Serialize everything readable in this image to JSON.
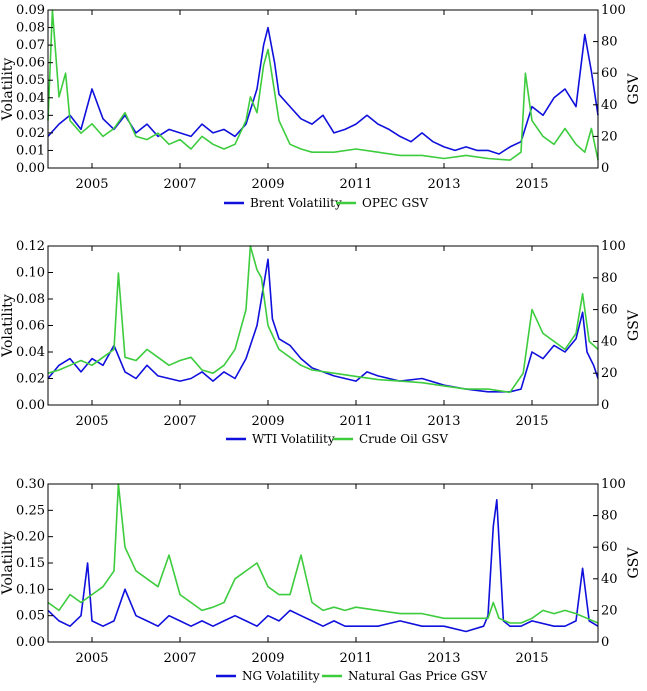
{
  "colors": {
    "volatility": "#1010dd",
    "gsv": "#3dcc3d"
  },
  "chart_data": [
    {
      "type": "line",
      "ylabel": "Volatility",
      "y2label": "GSV",
      "xlim": [
        2004.0,
        2016.5
      ],
      "ylim": [
        0,
        0.09
      ],
      "y2lim": [
        0,
        100
      ],
      "xticks": [
        "2005",
        "2007",
        "2009",
        "2011",
        "2013",
        "2015"
      ],
      "yticks": [
        "0.00",
        "0.01",
        "0.02",
        "0.03",
        "0.04",
        "0.05",
        "0.06",
        "0.07",
        "0.08",
        "0.09"
      ],
      "y2ticks": [
        "0",
        "20",
        "40",
        "60",
        "80",
        "100"
      ],
      "legend": "bottom-center",
      "series": [
        {
          "name": "Brent Volatility",
          "axis": "left",
          "x": [
            2004.0,
            2004.25,
            2004.5,
            2004.75,
            2005.0,
            2005.25,
            2005.5,
            2005.75,
            2006.0,
            2006.25,
            2006.5,
            2006.75,
            2007.0,
            2007.25,
            2007.5,
            2007.75,
            2008.0,
            2008.25,
            2008.5,
            2008.75,
            2008.9,
            2009.0,
            2009.15,
            2009.25,
            2009.5,
            2009.75,
            2010.0,
            2010.25,
            2010.5,
            2010.75,
            2011.0,
            2011.25,
            2011.5,
            2011.75,
            2012.0,
            2012.25,
            2012.5,
            2012.75,
            2013.0,
            2013.25,
            2013.5,
            2013.75,
            2014.0,
            2014.25,
            2014.5,
            2014.75,
            2015.0,
            2015.25,
            2015.5,
            2015.75,
            2016.0,
            2016.2,
            2016.35,
            2016.5
          ],
          "y": [
            0.018,
            0.025,
            0.03,
            0.022,
            0.045,
            0.028,
            0.022,
            0.03,
            0.02,
            0.025,
            0.018,
            0.022,
            0.02,
            0.018,
            0.025,
            0.02,
            0.022,
            0.018,
            0.025,
            0.045,
            0.07,
            0.08,
            0.06,
            0.042,
            0.035,
            0.028,
            0.025,
            0.03,
            0.02,
            0.022,
            0.025,
            0.03,
            0.025,
            0.022,
            0.018,
            0.015,
            0.02,
            0.015,
            0.012,
            0.01,
            0.012,
            0.01,
            0.01,
            0.008,
            0.012,
            0.015,
            0.035,
            0.03,
            0.04,
            0.045,
            0.035,
            0.076,
            0.055,
            0.03
          ]
        },
        {
          "name": "OPEC GSV",
          "axis": "right",
          "x": [
            2004.0,
            2004.1,
            2004.25,
            2004.4,
            2004.5,
            2004.75,
            2005.0,
            2005.25,
            2005.5,
            2005.75,
            2006.0,
            2006.25,
            2006.5,
            2006.75,
            2007.0,
            2007.25,
            2007.5,
            2007.75,
            2008.0,
            2008.25,
            2008.5,
            2008.6,
            2008.75,
            2008.9,
            2009.0,
            2009.25,
            2009.5,
            2009.75,
            2010.0,
            2010.5,
            2011.0,
            2011.5,
            2012.0,
            2012.5,
            2013.0,
            2013.5,
            2014.0,
            2014.5,
            2014.75,
            2014.85,
            2015.0,
            2015.25,
            2015.5,
            2015.75,
            2016.0,
            2016.2,
            2016.35,
            2016.5
          ],
          "y": [
            30,
            100,
            45,
            60,
            30,
            22,
            28,
            20,
            25,
            35,
            20,
            18,
            22,
            15,
            18,
            12,
            20,
            15,
            12,
            15,
            30,
            45,
            35,
            65,
            75,
            30,
            15,
            12,
            10,
            10,
            12,
            10,
            8,
            8,
            6,
            8,
            6,
            5,
            10,
            60,
            30,
            20,
            15,
            25,
            15,
            10,
            25,
            5
          ]
        }
      ]
    },
    {
      "type": "line",
      "ylabel": "Volatility",
      "y2label": "GSV",
      "xlim": [
        2004.0,
        2016.5
      ],
      "ylim": [
        0,
        0.12
      ],
      "y2lim": [
        0,
        100
      ],
      "xticks": [
        "2005",
        "2007",
        "2009",
        "2011",
        "2013",
        "2015"
      ],
      "yticks": [
        "0.00",
        "0.02",
        "0.04",
        "0.06",
        "0.08",
        "0.10",
        "0.12"
      ],
      "y2ticks": [
        "0",
        "20",
        "40",
        "60",
        "80",
        "100"
      ],
      "legend": "bottom-center",
      "series": [
        {
          "name": "WTI Volatility",
          "axis": "left",
          "x": [
            2004.0,
            2004.25,
            2004.5,
            2004.75,
            2005.0,
            2005.25,
            2005.5,
            2005.75,
            2006.0,
            2006.25,
            2006.5,
            2006.75,
            2007.0,
            2007.25,
            2007.5,
            2007.75,
            2008.0,
            2008.25,
            2008.5,
            2008.75,
            2008.85,
            2009.0,
            2009.1,
            2009.25,
            2009.5,
            2009.75,
            2010.0,
            2010.25,
            2010.5,
            2010.75,
            2011.0,
            2011.25,
            2011.5,
            2011.75,
            2012.0,
            2012.5,
            2013.0,
            2013.5,
            2014.0,
            2014.5,
            2014.75,
            2015.0,
            2015.25,
            2015.5,
            2015.75,
            2016.0,
            2016.15,
            2016.25,
            2016.4,
            2016.5
          ],
          "y": [
            0.02,
            0.03,
            0.035,
            0.025,
            0.035,
            0.03,
            0.045,
            0.025,
            0.02,
            0.03,
            0.022,
            0.02,
            0.018,
            0.02,
            0.025,
            0.018,
            0.025,
            0.02,
            0.035,
            0.06,
            0.08,
            0.11,
            0.065,
            0.05,
            0.045,
            0.035,
            0.028,
            0.025,
            0.022,
            0.02,
            0.018,
            0.025,
            0.022,
            0.02,
            0.018,
            0.02,
            0.015,
            0.012,
            0.01,
            0.01,
            0.012,
            0.04,
            0.035,
            0.045,
            0.04,
            0.05,
            0.07,
            0.04,
            0.03,
            0.02
          ]
        },
        {
          "name": "Crude Oil GSV",
          "axis": "right",
          "x": [
            2004.0,
            2004.25,
            2004.5,
            2004.75,
            2005.0,
            2005.25,
            2005.5,
            2005.6,
            2005.75,
            2006.0,
            2006.25,
            2006.5,
            2006.75,
            2007.0,
            2007.25,
            2007.5,
            2007.75,
            2008.0,
            2008.25,
            2008.5,
            2008.6,
            2008.75,
            2008.85,
            2009.0,
            2009.25,
            2009.5,
            2009.75,
            2010.0,
            2010.5,
            2011.0,
            2011.5,
            2012.0,
            2012.5,
            2013.0,
            2013.5,
            2014.0,
            2014.5,
            2014.8,
            2015.0,
            2015.25,
            2015.5,
            2015.75,
            2016.0,
            2016.15,
            2016.3,
            2016.5
          ],
          "y": [
            20,
            22,
            25,
            28,
            25,
            30,
            35,
            83,
            30,
            28,
            35,
            30,
            25,
            28,
            30,
            22,
            20,
            25,
            35,
            60,
            100,
            85,
            80,
            50,
            35,
            30,
            25,
            22,
            20,
            18,
            16,
            15,
            14,
            12,
            10,
            10,
            8,
            20,
            60,
            45,
            40,
            35,
            45,
            70,
            40,
            35
          ]
        }
      ]
    },
    {
      "type": "line",
      "ylabel": "Volatility",
      "y2label": "GSV",
      "xlim": [
        2004.0,
        2016.5
      ],
      "ylim": [
        0,
        0.3
      ],
      "y2lim": [
        0,
        100
      ],
      "xticks": [
        "2005",
        "2007",
        "2009",
        "2011",
        "2013",
        "2015"
      ],
      "yticks": [
        "0.00",
        "0.05",
        "0.10",
        "0.15",
        "0.20",
        "0.25",
        "0.30"
      ],
      "y2ticks": [
        "0",
        "20",
        "40",
        "60",
        "80",
        "100"
      ],
      "legend": "bottom-center",
      "series": [
        {
          "name": "NG Volatility",
          "axis": "left",
          "x": [
            2004.0,
            2004.25,
            2004.5,
            2004.75,
            2004.9,
            2005.0,
            2005.25,
            2005.5,
            2005.75,
            2006.0,
            2006.25,
            2006.5,
            2006.75,
            2007.0,
            2007.25,
            2007.5,
            2007.75,
            2008.0,
            2008.25,
            2008.5,
            2008.75,
            2009.0,
            2009.25,
            2009.5,
            2009.75,
            2010.0,
            2010.25,
            2010.5,
            2010.75,
            2011.0,
            2011.5,
            2012.0,
            2012.5,
            2013.0,
            2013.5,
            2013.9,
            2014.0,
            2014.12,
            2014.2,
            2014.35,
            2014.5,
            2014.75,
            2015.0,
            2015.5,
            2015.75,
            2016.0,
            2016.15,
            2016.3,
            2016.5
          ],
          "y": [
            0.06,
            0.04,
            0.03,
            0.05,
            0.15,
            0.04,
            0.03,
            0.04,
            0.1,
            0.05,
            0.04,
            0.03,
            0.05,
            0.04,
            0.03,
            0.04,
            0.03,
            0.04,
            0.05,
            0.04,
            0.03,
            0.05,
            0.04,
            0.06,
            0.05,
            0.04,
            0.03,
            0.04,
            0.03,
            0.03,
            0.03,
            0.04,
            0.03,
            0.03,
            0.02,
            0.03,
            0.05,
            0.22,
            0.27,
            0.04,
            0.03,
            0.03,
            0.04,
            0.03,
            0.03,
            0.04,
            0.14,
            0.04,
            0.03
          ]
        },
        {
          "name": "Natural Gas Price GSV",
          "axis": "right",
          "x": [
            2004.0,
            2004.25,
            2004.5,
            2004.75,
            2005.0,
            2005.25,
            2005.5,
            2005.6,
            2005.75,
            2006.0,
            2006.25,
            2006.5,
            2006.75,
            2007.0,
            2007.25,
            2007.5,
            2007.75,
            2008.0,
            2008.25,
            2008.5,
            2008.75,
            2009.0,
            2009.25,
            2009.5,
            2009.75,
            2010.0,
            2010.25,
            2010.5,
            2010.75,
            2011.0,
            2011.5,
            2012.0,
            2012.5,
            2013.0,
            2013.5,
            2014.0,
            2014.12,
            2014.25,
            2014.5,
            2014.75,
            2015.0,
            2015.25,
            2015.5,
            2015.75,
            2016.0,
            2016.25,
            2016.5
          ],
          "y": [
            25,
            20,
            30,
            25,
            30,
            35,
            45,
            100,
            60,
            45,
            40,
            35,
            55,
            30,
            25,
            20,
            22,
            25,
            40,
            45,
            50,
            35,
            30,
            30,
            55,
            25,
            20,
            22,
            20,
            22,
            20,
            18,
            18,
            15,
            15,
            15,
            25,
            15,
            12,
            12,
            15,
            20,
            18,
            20,
            18,
            15,
            12
          ]
        }
      ]
    }
  ]
}
